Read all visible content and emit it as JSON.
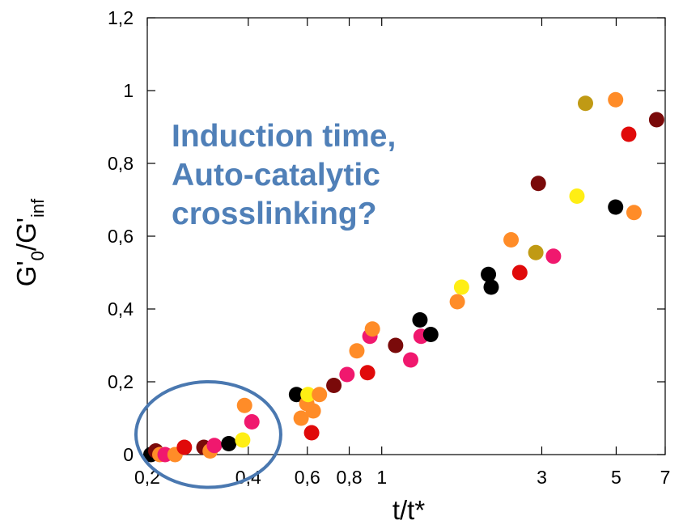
{
  "chart_data": {
    "type": "scatter",
    "x_scale": "log",
    "xlim": [
      0.2,
      7
    ],
    "ylim": [
      0,
      1.2
    ],
    "xlabel": "t/t*",
    "ylabel": {
      "base": "G'",
      "sub0": "0",
      "mid": "/G'",
      "sub1": "inf"
    },
    "grid": false,
    "x_ticks": [
      {
        "value": 0.2,
        "label": "0,2"
      },
      {
        "value": 0.4,
        "label": "0,4"
      },
      {
        "value": 0.6,
        "label": "0,6"
      },
      {
        "value": 0.8,
        "label": "0,8"
      },
      {
        "value": 1,
        "label": "1"
      },
      {
        "value": 3,
        "label": "3"
      },
      {
        "value": 5,
        "label": "5"
      },
      {
        "value": 7,
        "label": "7"
      }
    ],
    "y_ticks": [
      {
        "value": 0,
        "label": "0"
      },
      {
        "value": 0.2,
        "label": "0,2"
      },
      {
        "value": 0.4,
        "label": "0,4"
      },
      {
        "value": 0.6,
        "label": "0,6"
      },
      {
        "value": 0.8,
        "label": "0,8"
      },
      {
        "value": 1,
        "label": "1"
      },
      {
        "value": 1.2,
        "label": "1,2"
      }
    ],
    "annotation": [
      "Induction time,",
      "Auto-catalytic",
      "crosslinking?"
    ],
    "annotation_color": "#5080b8",
    "ellipse_color": "#4a78b0",
    "ellipse_region": {
      "x": [
        0.185,
        0.5
      ],
      "y": [
        -0.09,
        0.2
      ]
    },
    "colors": {
      "black": "#000000",
      "maroon": "#7a0a0a",
      "red": "#e00a0a",
      "orange": "#ff8c28",
      "pink": "#f0186e",
      "yellow": "#ffee14",
      "olive": "#c09a14"
    },
    "points": [
      {
        "x": 0.205,
        "y": 0.0,
        "c": "black"
      },
      {
        "x": 0.212,
        "y": 0.01,
        "c": "maroon"
      },
      {
        "x": 0.218,
        "y": 0.0,
        "c": "orange"
      },
      {
        "x": 0.226,
        "y": 0.0,
        "c": "pink"
      },
      {
        "x": 0.242,
        "y": 0.0,
        "c": "orange"
      },
      {
        "x": 0.258,
        "y": 0.02,
        "c": "red"
      },
      {
        "x": 0.295,
        "y": 0.02,
        "c": "maroon"
      },
      {
        "x": 0.308,
        "y": 0.01,
        "c": "orange"
      },
      {
        "x": 0.317,
        "y": 0.025,
        "c": "pink"
      },
      {
        "x": 0.35,
        "y": 0.03,
        "c": "black"
      },
      {
        "x": 0.385,
        "y": 0.04,
        "c": "yellow"
      },
      {
        "x": 0.39,
        "y": 0.135,
        "c": "orange"
      },
      {
        "x": 0.41,
        "y": 0.09,
        "c": "pink"
      },
      {
        "x": 0.557,
        "y": 0.165,
        "c": "black"
      },
      {
        "x": 0.575,
        "y": 0.1,
        "c": "orange"
      },
      {
        "x": 0.598,
        "y": 0.14,
        "c": "orange"
      },
      {
        "x": 0.603,
        "y": 0.165,
        "c": "yellow"
      },
      {
        "x": 0.618,
        "y": 0.06,
        "c": "red"
      },
      {
        "x": 0.625,
        "y": 0.12,
        "c": "orange"
      },
      {
        "x": 0.652,
        "y": 0.165,
        "c": "orange"
      },
      {
        "x": 0.72,
        "y": 0.19,
        "c": "maroon"
      },
      {
        "x": 0.788,
        "y": 0.22,
        "c": "pink"
      },
      {
        "x": 0.843,
        "y": 0.285,
        "c": "orange"
      },
      {
        "x": 0.907,
        "y": 0.225,
        "c": "red"
      },
      {
        "x": 0.922,
        "y": 0.325,
        "c": "pink"
      },
      {
        "x": 0.938,
        "y": 0.345,
        "c": "orange"
      },
      {
        "x": 1.1,
        "y": 0.3,
        "c": "maroon"
      },
      {
        "x": 1.22,
        "y": 0.26,
        "c": "pink"
      },
      {
        "x": 1.3,
        "y": 0.37,
        "c": "black"
      },
      {
        "x": 1.31,
        "y": 0.325,
        "c": "pink"
      },
      {
        "x": 1.4,
        "y": 0.33,
        "c": "black"
      },
      {
        "x": 1.68,
        "y": 0.42,
        "c": "orange"
      },
      {
        "x": 1.73,
        "y": 0.46,
        "c": "yellow"
      },
      {
        "x": 2.08,
        "y": 0.495,
        "c": "black"
      },
      {
        "x": 2.12,
        "y": 0.46,
        "c": "black"
      },
      {
        "x": 2.43,
        "y": 0.59,
        "c": "orange"
      },
      {
        "x": 2.58,
        "y": 0.5,
        "c": "red"
      },
      {
        "x": 2.88,
        "y": 0.555,
        "c": "olive"
      },
      {
        "x": 2.93,
        "y": 0.745,
        "c": "maroon"
      },
      {
        "x": 3.25,
        "y": 0.545,
        "c": "pink"
      },
      {
        "x": 3.82,
        "y": 0.71,
        "c": "yellow"
      },
      {
        "x": 4.05,
        "y": 0.965,
        "c": "olive"
      },
      {
        "x": 4.98,
        "y": 0.975,
        "c": "orange"
      },
      {
        "x": 4.98,
        "y": 0.68,
        "c": "black"
      },
      {
        "x": 5.45,
        "y": 0.88,
        "c": "red"
      },
      {
        "x": 5.65,
        "y": 0.665,
        "c": "orange"
      },
      {
        "x": 6.6,
        "y": 0.92,
        "c": "maroon"
      }
    ]
  }
}
